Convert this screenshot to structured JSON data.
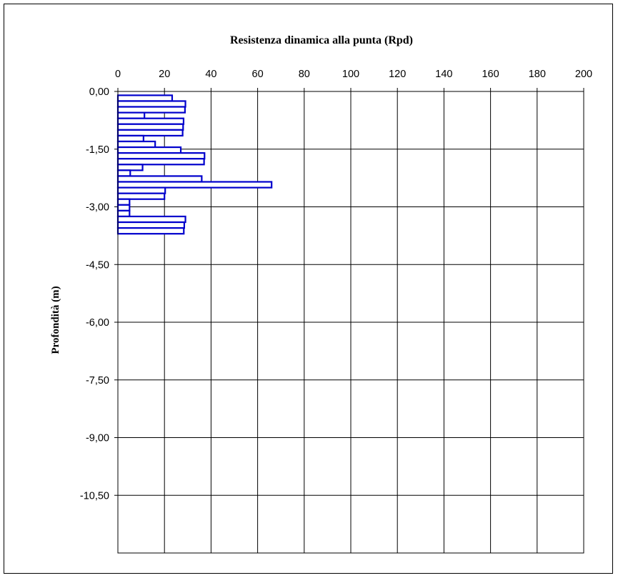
{
  "chart_data": {
    "type": "bar",
    "orientation": "horizontal",
    "title": "Resistenza dinamica alla punta (Rpd)",
    "xlabel": "",
    "ylabel": "Profondità (m)",
    "xlim": [
      0,
      200
    ],
    "ylim": [
      -12.0,
      0.0
    ],
    "x_ticks": [
      "0",
      "20",
      "40",
      "60",
      "80",
      "100",
      "120",
      "140",
      "160",
      "180",
      "200"
    ],
    "y_ticks": [
      "0,00",
      "-1,50",
      "-3,00",
      "-4,50",
      "-6,00",
      "-7,50",
      "-9,00",
      "-10,50"
    ],
    "x_axis_position": "top",
    "grid": true,
    "bar_color": "#0000cc",
    "bar_fill": "#ffffff",
    "bars": [
      {
        "depth_top": -0.1,
        "depth_bottom": -0.25,
        "value": 23.3
      },
      {
        "depth_top": -0.25,
        "depth_bottom": -0.4,
        "value": 29.0
      },
      {
        "depth_top": -0.4,
        "depth_bottom": -0.55,
        "value": 28.8
      },
      {
        "depth_top": -0.55,
        "depth_bottom": -0.7,
        "value": 11.4
      },
      {
        "depth_top": -0.7,
        "depth_bottom": -0.85,
        "value": 28.2
      },
      {
        "depth_top": -0.85,
        "depth_bottom": -1.0,
        "value": 28.0
      },
      {
        "depth_top": -1.0,
        "depth_bottom": -1.15,
        "value": 27.8
      },
      {
        "depth_top": -1.15,
        "depth_bottom": -1.3,
        "value": 11.0
      },
      {
        "depth_top": -1.3,
        "depth_bottom": -1.45,
        "value": 16.0
      },
      {
        "depth_top": -1.45,
        "depth_bottom": -1.6,
        "value": 27.0
      },
      {
        "depth_top": -1.6,
        "depth_bottom": -1.75,
        "value": 37.2
      },
      {
        "depth_top": -1.75,
        "depth_bottom": -1.9,
        "value": 37.0
      },
      {
        "depth_top": -1.9,
        "depth_bottom": -2.05,
        "value": 10.6
      },
      {
        "depth_top": -2.05,
        "depth_bottom": -2.2,
        "value": 5.3
      },
      {
        "depth_top": -2.2,
        "depth_bottom": -2.35,
        "value": 36.0
      },
      {
        "depth_top": -2.35,
        "depth_bottom": -2.5,
        "value": 66.0
      },
      {
        "depth_top": -2.5,
        "depth_bottom": -2.65,
        "value": 20.3
      },
      {
        "depth_top": -2.65,
        "depth_bottom": -2.8,
        "value": 20.0
      },
      {
        "depth_top": -2.8,
        "depth_bottom": -2.95,
        "value": 5.0
      },
      {
        "depth_top": -2.95,
        "depth_bottom": -3.1,
        "value": 5.0
      },
      {
        "depth_top": -3.1,
        "depth_bottom": -3.25,
        "value": 5.0
      },
      {
        "depth_top": -3.25,
        "depth_bottom": -3.4,
        "value": 29.0
      },
      {
        "depth_top": -3.4,
        "depth_bottom": -3.55,
        "value": 28.5
      },
      {
        "depth_top": -3.55,
        "depth_bottom": -3.7,
        "value": 28.3
      }
    ]
  }
}
